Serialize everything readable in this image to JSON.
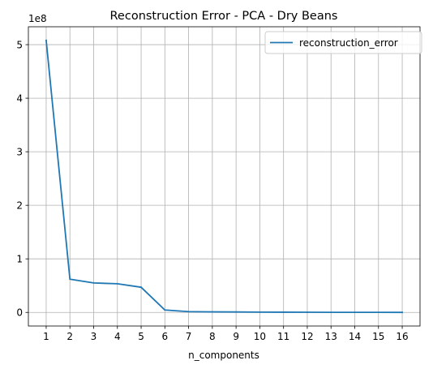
{
  "chart_data": {
    "type": "line",
    "title": "Reconstruction Error - PCA - Dry Beans",
    "xlabel": "n_components",
    "ylabel": "",
    "y_offset_label": "1e8",
    "x": [
      1,
      2,
      3,
      4,
      5,
      6,
      7,
      8,
      9,
      10,
      11,
      12,
      13,
      14,
      15,
      16
    ],
    "x_tick_labels": [
      "1",
      "2",
      "3",
      "4",
      "5",
      "6",
      "7",
      "8",
      "9",
      "10",
      "11",
      "12",
      "13",
      "14",
      "15",
      "16"
    ],
    "y_tick_values": [
      0,
      1,
      2,
      3,
      4,
      5
    ],
    "y_tick_labels": [
      "0",
      "1",
      "2",
      "3",
      "4",
      "5"
    ],
    "xlim": [
      0.25,
      16.75
    ],
    "ylim": [
      -0.254,
      5.334
    ],
    "grid": true,
    "legend_position": "upper right",
    "series": [
      {
        "name": "reconstruction_error",
        "color": "#1f77b4",
        "unit_scale": 100000000,
        "values": [
          5.08,
          0.62,
          0.55,
          0.535,
          0.47,
          0.045,
          0.015,
          0.01,
          0.008,
          0.005,
          0.004,
          0.003,
          0.002,
          0.002,
          0.001,
          0.0008
        ]
      }
    ]
  }
}
